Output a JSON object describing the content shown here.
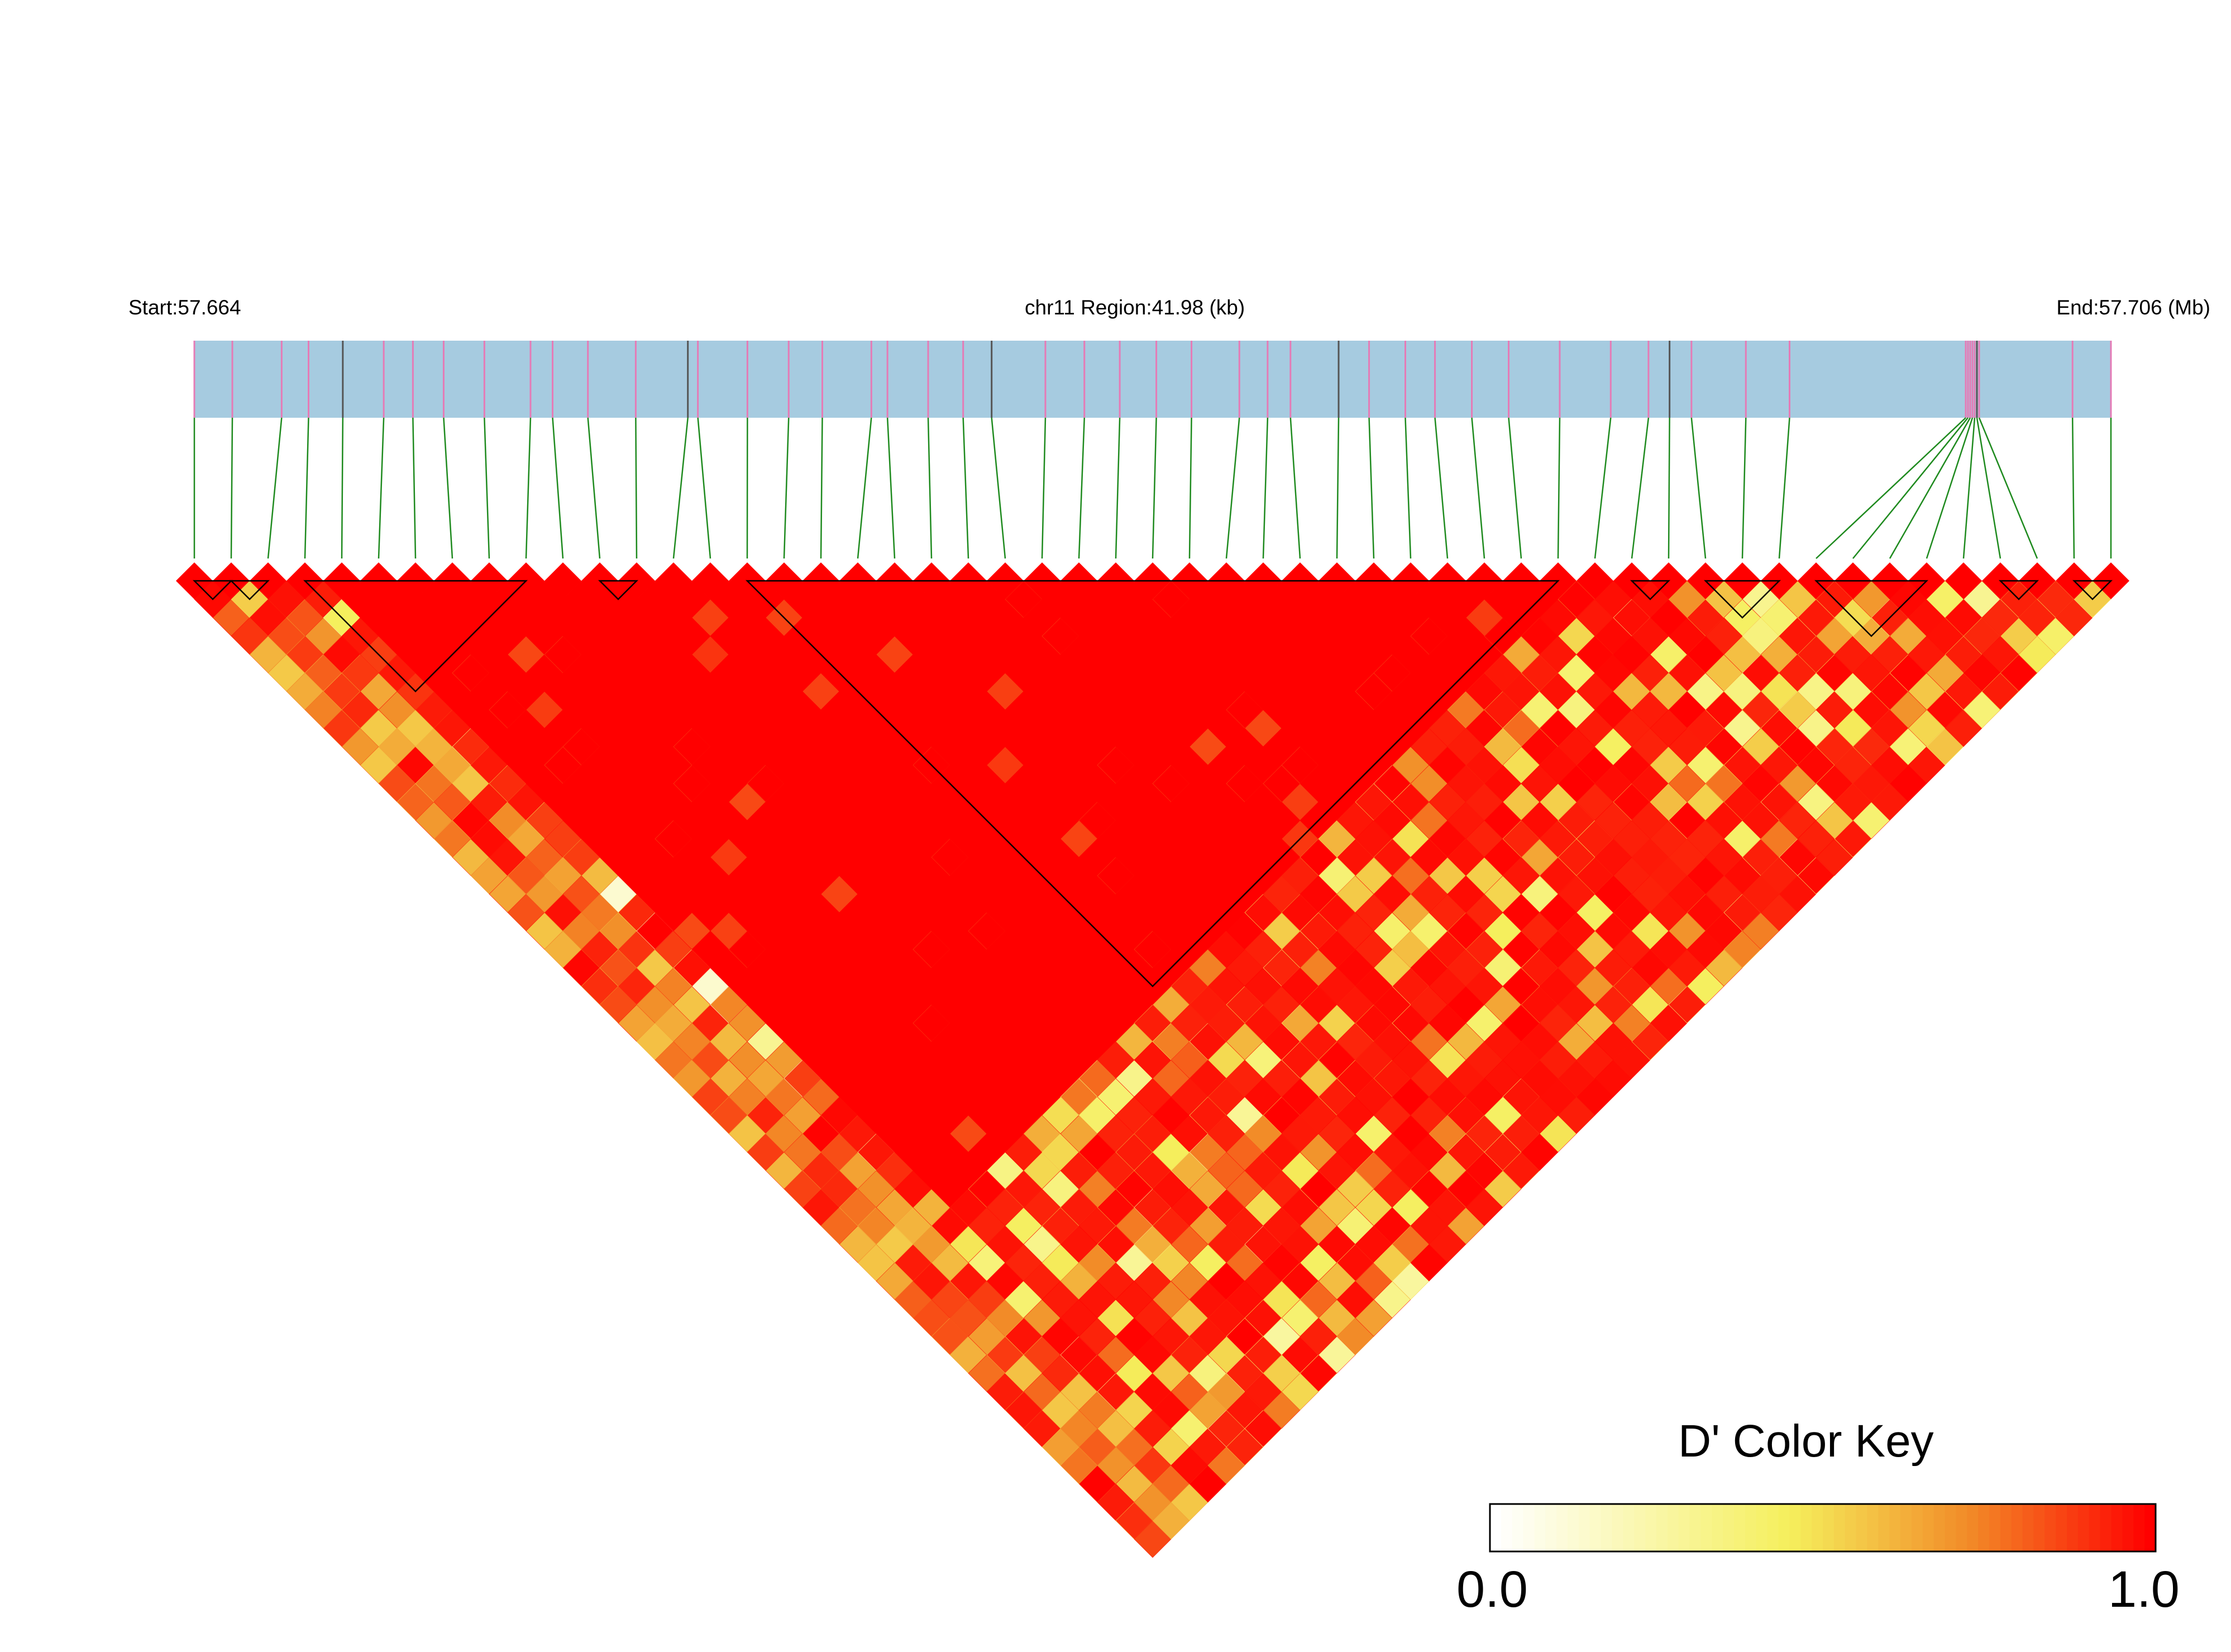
{
  "header": {
    "start_label": "Start:57.664",
    "region_label": "chr11 Region:41.98 (kb)",
    "end_label": "End:57.706 (Mb)"
  },
  "color_key": {
    "title": "D' Color Key",
    "min_label": "0.0",
    "max_label": "1.0",
    "colors": [
      "#ffffff",
      "#f5ef5c",
      "#f28c28",
      "#ff0000"
    ]
  },
  "colors": {
    "track_fill": "#a6cbe0",
    "snp_tick": "#e57bb6",
    "connector": "#1e8a1e",
    "high_ld": "#ff0000",
    "block_outline": "#000000"
  },
  "ld_plot": {
    "snp_count": 53,
    "blocks": [
      {
        "from": 0,
        "to": 1
      },
      {
        "from": 1,
        "to": 2
      },
      {
        "from": 3,
        "to": 9
      },
      {
        "from": 11,
        "to": 12
      },
      {
        "from": 15,
        "to": 37
      },
      {
        "from": 39,
        "to": 40
      },
      {
        "from": 41,
        "to": 43
      },
      {
        "from": 44,
        "to": 47
      },
      {
        "from": 49,
        "to": 50
      },
      {
        "from": 51,
        "to": 52
      }
    ]
  }
}
